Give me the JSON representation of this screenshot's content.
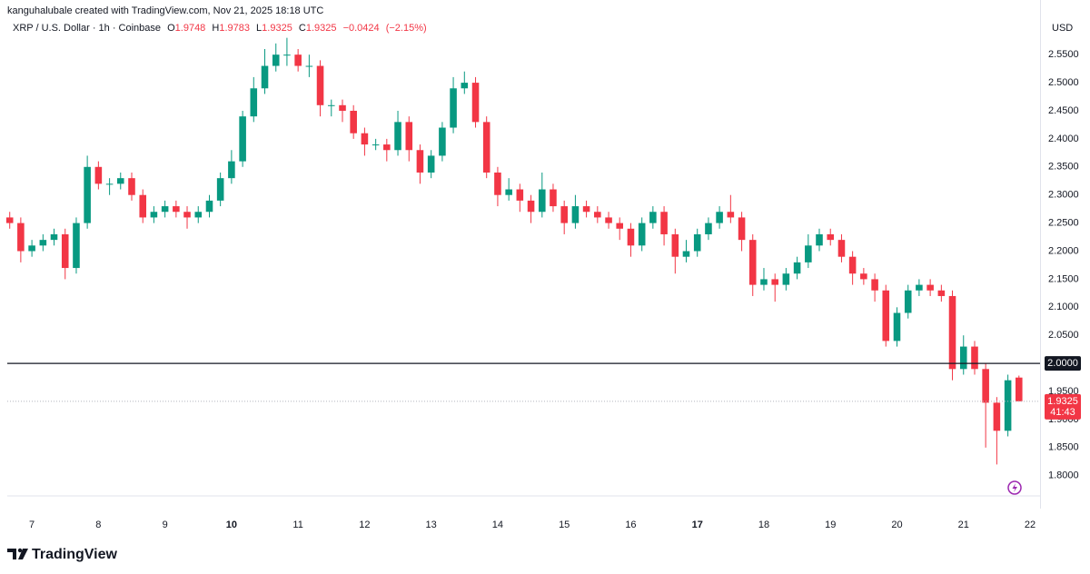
{
  "chart_data": {
    "type": "candlestick",
    "attribution": "kanguhalubale created with TradingView.com, Nov 21, 2025 18:18 UTC",
    "title": "XRP / U.S. Dollar · 1h · Coinbase",
    "ohlc_keys": [
      "O",
      "H",
      "L",
      "C"
    ],
    "change": {
      "value": -0.0424,
      "label": "−0.0424"
    },
    "change_pct": {
      "value": -2.15,
      "label": "(−2.15%)"
    },
    "currency": "USD",
    "x": [
      6.667,
      6.833,
      7,
      7.167,
      7.333,
      7.5,
      7.667,
      7.833,
      8,
      8.167,
      8.333,
      8.5,
      8.667,
      8.833,
      9,
      9.167,
      9.333,
      9.5,
      9.667,
      9.833,
      10,
      10.167,
      10.333,
      10.5,
      10.667,
      10.833,
      11,
      11.167,
      11.333,
      11.5,
      11.667,
      11.833,
      12,
      12.167,
      12.333,
      12.5,
      12.667,
      12.833,
      13,
      13.167,
      13.333,
      13.5,
      13.667,
      13.833,
      14,
      14.167,
      14.333,
      14.5,
      14.667,
      14.833,
      15,
      15.167,
      15.333,
      15.5,
      15.667,
      15.833,
      16,
      16.167,
      16.333,
      16.5,
      16.667,
      16.833,
      17,
      17.167,
      17.333,
      17.5,
      17.667,
      17.833,
      18,
      18.167,
      18.333,
      18.5,
      18.667,
      18.833,
      19,
      19.167,
      19.333,
      19.5,
      19.667,
      19.833,
      20,
      20.167,
      20.333,
      20.5,
      20.667,
      20.833,
      21,
      21.167,
      21.333,
      21.5,
      21.667,
      21.833
    ],
    "ohlc": {
      "open": [
        2.26,
        2.25,
        2.2,
        2.21,
        2.22,
        2.23,
        2.17,
        2.25,
        2.35,
        2.32,
        2.32,
        2.33,
        2.3,
        2.26,
        2.27,
        2.28,
        2.27,
        2.26,
        2.27,
        2.29,
        2.33,
        2.36,
        2.44,
        2.49,
        2.53,
        2.55,
        2.55,
        2.53,
        2.53,
        2.46,
        2.46,
        2.45,
        2.41,
        2.39,
        2.39,
        2.38,
        2.43,
        2.38,
        2.34,
        2.37,
        2.42,
        2.49,
        2.5,
        2.43,
        2.34,
        2.3,
        2.31,
        2.29,
        2.27,
        2.31,
        2.28,
        2.25,
        2.28,
        2.27,
        2.26,
        2.25,
        2.24,
        2.21,
        2.25,
        2.27,
        2.23,
        2.19,
        2.2,
        2.23,
        2.25,
        2.27,
        2.26,
        2.22,
        2.14,
        2.15,
        2.14,
        2.16,
        2.18,
        2.21,
        2.23,
        2.22,
        2.19,
        2.16,
        2.15,
        2.13,
        2.04,
        2.09,
        2.13,
        2.14,
        2.13,
        2.12,
        1.99,
        2.03,
        1.99,
        1.93,
        1.88,
        1.9748
      ],
      "high": [
        2.27,
        2.26,
        2.22,
        2.23,
        2.24,
        2.24,
        2.26,
        2.37,
        2.36,
        2.33,
        2.34,
        2.34,
        2.31,
        2.28,
        2.29,
        2.29,
        2.28,
        2.28,
        2.3,
        2.34,
        2.38,
        2.45,
        2.51,
        2.56,
        2.57,
        2.58,
        2.56,
        2.55,
        2.54,
        2.47,
        2.47,
        2.46,
        2.42,
        2.4,
        2.4,
        2.45,
        2.44,
        2.39,
        2.38,
        2.43,
        2.51,
        2.52,
        2.51,
        2.44,
        2.35,
        2.33,
        2.32,
        2.3,
        2.34,
        2.32,
        2.29,
        2.3,
        2.29,
        2.28,
        2.27,
        2.26,
        2.25,
        2.26,
        2.28,
        2.28,
        2.24,
        2.22,
        2.24,
        2.26,
        2.28,
        2.3,
        2.27,
        2.23,
        2.17,
        2.16,
        2.17,
        2.19,
        2.23,
        2.24,
        2.24,
        2.23,
        2.2,
        2.17,
        2.16,
        2.14,
        2.1,
        2.14,
        2.15,
        2.15,
        2.14,
        2.13,
        2.05,
        2.04,
        2.0,
        1.94,
        1.98,
        1.9783
      ],
      "low": [
        2.24,
        2.18,
        2.19,
        2.2,
        2.21,
        2.15,
        2.16,
        2.24,
        2.31,
        2.3,
        2.31,
        2.29,
        2.25,
        2.25,
        2.26,
        2.26,
        2.24,
        2.25,
        2.26,
        2.28,
        2.32,
        2.35,
        2.43,
        2.48,
        2.52,
        2.53,
        2.52,
        2.51,
        2.44,
        2.44,
        2.43,
        2.4,
        2.37,
        2.38,
        2.36,
        2.37,
        2.36,
        2.32,
        2.33,
        2.36,
        2.41,
        2.48,
        2.42,
        2.33,
        2.28,
        2.29,
        2.27,
        2.25,
        2.26,
        2.27,
        2.23,
        2.24,
        2.26,
        2.25,
        2.24,
        2.22,
        2.19,
        2.2,
        2.24,
        2.21,
        2.16,
        2.18,
        2.19,
        2.22,
        2.24,
        2.25,
        2.2,
        2.12,
        2.13,
        2.11,
        2.13,
        2.15,
        2.17,
        2.2,
        2.21,
        2.18,
        2.14,
        2.14,
        2.11,
        2.03,
        2.03,
        2.08,
        2.12,
        2.12,
        2.11,
        1.97,
        1.98,
        1.98,
        1.85,
        1.82,
        1.87,
        1.9325
      ],
      "close": [
        2.25,
        2.2,
        2.21,
        2.22,
        2.23,
        2.17,
        2.25,
        2.35,
        2.32,
        2.32,
        2.33,
        2.3,
        2.26,
        2.27,
        2.28,
        2.27,
        2.26,
        2.27,
        2.29,
        2.33,
        2.36,
        2.44,
        2.49,
        2.53,
        2.55,
        2.55,
        2.53,
        2.53,
        2.46,
        2.46,
        2.45,
        2.41,
        2.39,
        2.39,
        2.38,
        2.43,
        2.38,
        2.34,
        2.37,
        2.42,
        2.49,
        2.5,
        2.43,
        2.34,
        2.3,
        2.31,
        2.29,
        2.27,
        2.31,
        2.28,
        2.25,
        2.28,
        2.27,
        2.26,
        2.25,
        2.24,
        2.21,
        2.25,
        2.27,
        2.23,
        2.19,
        2.2,
        2.23,
        2.25,
        2.27,
        2.26,
        2.22,
        2.14,
        2.15,
        2.14,
        2.16,
        2.18,
        2.21,
        2.23,
        2.22,
        2.19,
        2.16,
        2.15,
        2.13,
        2.04,
        2.09,
        2.13,
        2.14,
        2.13,
        2.12,
        1.99,
        2.03,
        1.99,
        1.93,
        1.88,
        1.97,
        1.9325
      ]
    },
    "up_color": "#089981",
    "down_color": "#f23645",
    "xlim": [
      6.63,
      22.15
    ],
    "xticks": [
      7,
      8,
      9,
      10,
      11,
      12,
      13,
      14,
      15,
      16,
      17,
      18,
      19,
      20,
      21,
      22
    ],
    "bold_xticks": [
      10,
      17
    ],
    "ylim": [
      1.764,
      2.615
    ],
    "yticks": [
      {
        "value": 1.8,
        "label": "1.8000"
      },
      {
        "value": 1.85,
        "label": "1.8500"
      },
      {
        "value": 1.9,
        "label": "1.9000"
      },
      {
        "value": 1.95,
        "label": "1.9500"
      },
      {
        "value": 2.0,
        "label": "2.0000"
      },
      {
        "value": 2.05,
        "label": "2.0500"
      },
      {
        "value": 2.1,
        "label": "2.1000"
      },
      {
        "value": 2.15,
        "label": "2.1500"
      },
      {
        "value": 2.2,
        "label": "2.2000"
      },
      {
        "value": 2.25,
        "label": "2.2500"
      },
      {
        "value": 2.3,
        "label": "2.3000"
      },
      {
        "value": 2.35,
        "label": "2.3500"
      },
      {
        "value": 2.4,
        "label": "2.4000"
      },
      {
        "value": 2.45,
        "label": "2.4500"
      },
      {
        "value": 2.5,
        "label": "2.5000"
      },
      {
        "value": 2.55,
        "label": "2.5500"
      }
    ],
    "price_line": {
      "value": 2,
      "label": "2.0000",
      "color": "#131722"
    },
    "countdown": "41:43",
    "grid": false
  },
  "branding": "TradingView"
}
